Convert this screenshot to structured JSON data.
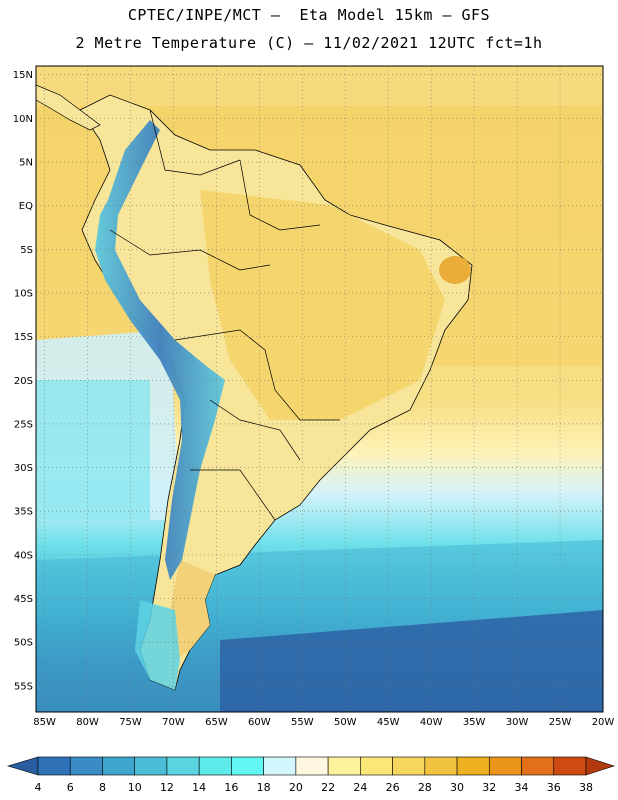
{
  "header": {
    "line1": "CPTEC/INPE/MCT –  Eta Model 15km – GFS",
    "line2": "2 Metre Temperature (C) – 11/02/2021 12UTC fct=1h"
  },
  "map": {
    "region": "South America",
    "lon_range": [
      -86,
      -20
    ],
    "lat_range": [
      -58,
      16
    ],
    "lat_labels": [
      "15N",
      "10N",
      "5N",
      "EQ",
      "5S",
      "10S",
      "15S",
      "20S",
      "25S",
      "30S",
      "35S",
      "40S",
      "45S",
      "50S",
      "55S"
    ],
    "lat_values": [
      15,
      10,
      5,
      0,
      -5,
      -10,
      -15,
      -20,
      -25,
      -30,
      -35,
      -40,
      -45,
      -50,
      -55
    ],
    "lon_labels": [
      "85W",
      "80W",
      "75W",
      "70W",
      "65W",
      "60W",
      "55W",
      "50W",
      "45W",
      "40W",
      "35W",
      "30W",
      "25W",
      "20W"
    ],
    "lon_values": [
      -85,
      -80,
      -75,
      -70,
      -65,
      -60,
      -55,
      -50,
      -45,
      -40,
      -35,
      -30,
      -25,
      -20
    ],
    "grid": "dotted"
  },
  "colorbar": {
    "labels": [
      "4",
      "6",
      "8",
      "10",
      "12",
      "14",
      "16",
      "18",
      "20",
      "22",
      "24",
      "26",
      "28",
      "30",
      "32",
      "34",
      "36",
      "38"
    ],
    "colors": [
      "#2a5d9f",
      "#2f72b8",
      "#3a8cc4",
      "#3ea6ce",
      "#4cbdd6",
      "#5bd3e0",
      "#5ee9ea",
      "#62f7f4",
      "#d2f6fb",
      "#fff7e0",
      "#fdf29c",
      "#fbe678",
      "#f6d65c",
      "#f0c440",
      "#edb020",
      "#eb941c",
      "#e2701a",
      "#cd4a12",
      "#b33a0e"
    ]
  }
}
